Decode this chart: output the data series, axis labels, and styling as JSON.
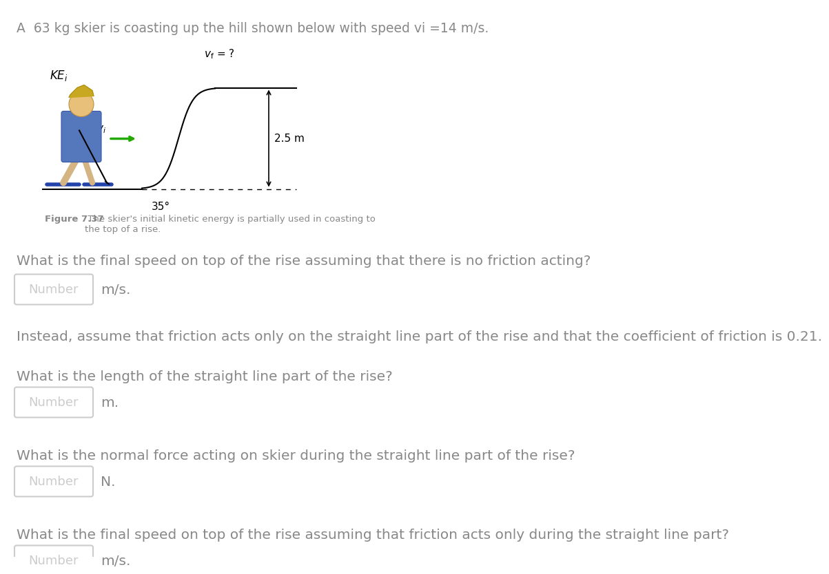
{
  "title_text": "A  63 kg skier is coasting up the hill shown below with speed vi =14 m/s.",
  "fig_caption_bold": "Figure 7.37",
  "fig_caption_normal": " The skier's initial kinetic energy is partially used in coasting to\nthe top of a rise.",
  "q1_text": "What is the final speed on top of the rise assuming that there is no friction acting?",
  "q1_unit": "m/s.",
  "q2_intro": "Instead, assume that friction acts only on the straight line part of the rise and that the coefficient of friction is 0.21.",
  "q2_text": "What is the length of the straight line part of the rise?",
  "q2_unit": "m.",
  "q3_text": "What is the normal force acting on skier during the straight line part of the rise?",
  "q3_unit": "N.",
  "q4_text": "What is the final speed on top of the rise assuming that friction acts only during the straight line part?",
  "q4_unit": "m/s.",
  "number_placeholder": "Number",
  "label_KEi": "KE",
  "label_vi": "v",
  "label_vf": "v",
  "label_25m": "2.5 m",
  "label_35deg": "35°",
  "text_color": "#888888",
  "box_edge_color": "#cccccc",
  "background_color": "#ffffff",
  "title_fontsize": 13.5,
  "body_fontsize": 14.5,
  "caption_fontsize": 9.5,
  "number_fontsize": 13,
  "diagram_fontsize": 11
}
